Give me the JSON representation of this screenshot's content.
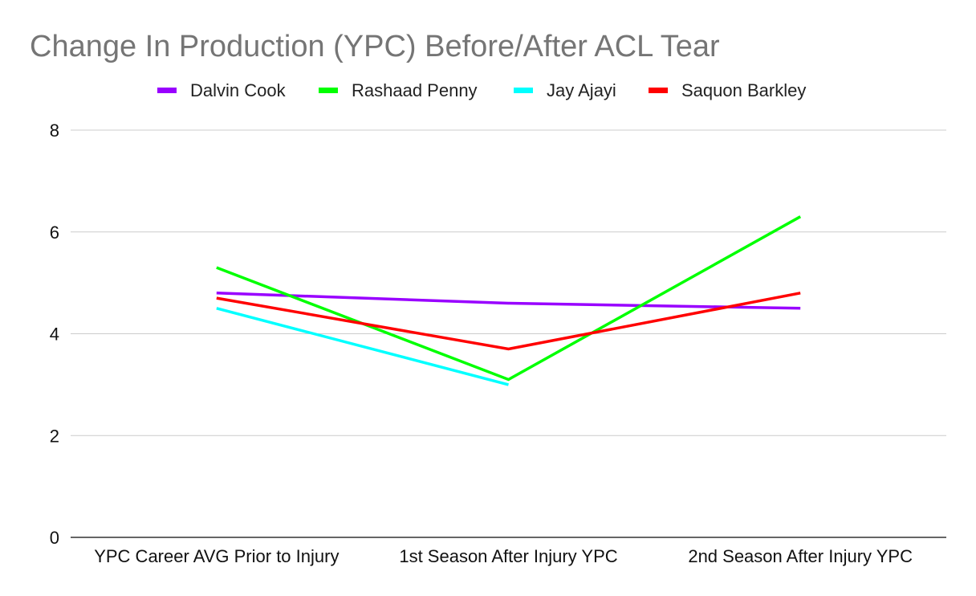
{
  "chart_data": {
    "type": "line",
    "title": "Change In Production (YPC) Before/After ACL Tear",
    "xlabel": "",
    "ylabel": "",
    "categories": [
      "YPC Career AVG Prior to Injury",
      "1st Season After Injury YPC",
      "2nd Season After Injury YPC"
    ],
    "ylim": [
      0,
      8
    ],
    "yticks": [
      "0",
      "2",
      "4",
      "6",
      "8"
    ],
    "ytick_values": [
      0,
      2,
      4,
      6,
      8
    ],
    "grid": true,
    "legend_position": "top",
    "series": [
      {
        "name": "Dalvin Cook",
        "color": "#9900ff",
        "values": [
          4.8,
          4.6,
          4.5
        ]
      },
      {
        "name": "Rashaad Penny",
        "color": "#00ff00",
        "values": [
          5.3,
          3.1,
          6.3
        ]
      },
      {
        "name": "Jay Ajayi",
        "color": "#00ffff",
        "values": [
          4.5,
          3.0,
          null
        ]
      },
      {
        "name": "Saquon Barkley",
        "color": "#ff0000",
        "values": [
          4.7,
          3.7,
          4.8
        ]
      }
    ]
  }
}
